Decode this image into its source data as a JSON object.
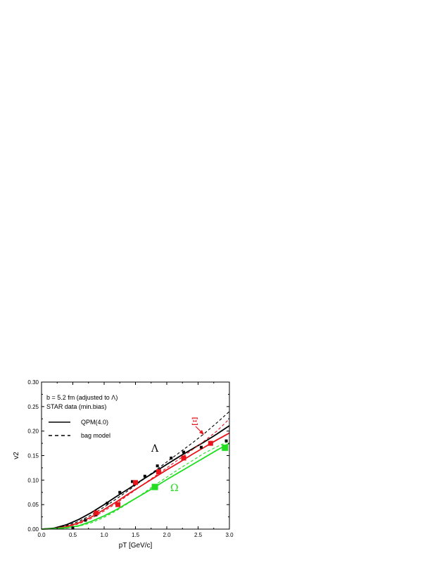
{
  "chart_data": {
    "type": "line",
    "title": "",
    "xlabel": "pT [GeV/c]",
    "ylabel": "v2",
    "xlim": [
      0.0,
      3.0
    ],
    "ylim": [
      0.0,
      0.3
    ],
    "xticks": [
      "0.0",
      "0.5",
      "1.0",
      "1.5",
      "2.0",
      "2.5",
      "3.0"
    ],
    "yticks": [
      "0.00",
      "0.05",
      "0.10",
      "0.15",
      "0.20",
      "0.25",
      "0.30"
    ],
    "grid": false,
    "annotations": {
      "line1": "b = 5.2 fm (adjusted to Λ)",
      "line2": "STAR data (min.bias)"
    },
    "legend": {
      "placement": "top-left",
      "entries": [
        {
          "label": "QPM(4.0)",
          "style": "solid"
        },
        {
          "label": "bag model",
          "style": "dashed"
        }
      ]
    },
    "species_labels": {
      "lambda": "Λ",
      "xi": "Ξ",
      "omega": "Ω"
    },
    "colors": {
      "lambda": "#000000",
      "xi": "#e8141b",
      "omega": "#22dd22"
    },
    "series": [
      {
        "species": "lambda",
        "curve_style": "solid",
        "x": [
          0.0,
          0.2,
          0.4,
          0.6,
          0.8,
          1.0,
          1.2,
          1.4,
          1.6,
          1.8,
          2.0,
          2.2,
          2.4,
          2.6,
          2.8,
          3.0
        ],
        "y": [
          0.0,
          0.002,
          0.009,
          0.02,
          0.034,
          0.05,
          0.067,
          0.083,
          0.1,
          0.116,
          0.132,
          0.148,
          0.163,
          0.178,
          0.194,
          0.211
        ]
      },
      {
        "species": "lambda",
        "curve_style": "dashed",
        "x": [
          0.0,
          0.2,
          0.4,
          0.6,
          0.8,
          1.0,
          1.2,
          1.4,
          1.6,
          1.8,
          2.0,
          2.2,
          2.4,
          2.6,
          2.8,
          3.0
        ],
        "y": [
          0.0,
          0.002,
          0.007,
          0.016,
          0.029,
          0.045,
          0.062,
          0.08,
          0.099,
          0.118,
          0.137,
          0.156,
          0.175,
          0.195,
          0.217,
          0.24
        ]
      },
      {
        "species": "xi",
        "curve_style": "solid",
        "x": [
          0.0,
          0.2,
          0.4,
          0.6,
          0.8,
          1.0,
          1.2,
          1.4,
          1.6,
          1.8,
          2.0,
          2.2,
          2.4,
          2.6,
          2.8,
          3.0
        ],
        "y": [
          0.0,
          0.001,
          0.005,
          0.013,
          0.025,
          0.04,
          0.056,
          0.073,
          0.089,
          0.105,
          0.121,
          0.136,
          0.152,
          0.167,
          0.182,
          0.196
        ]
      },
      {
        "species": "xi",
        "curve_style": "dashed",
        "x": [
          0.0,
          0.2,
          0.4,
          0.6,
          0.8,
          1.0,
          1.2,
          1.4,
          1.6,
          1.8,
          2.0,
          2.2,
          2.4,
          2.6,
          2.8,
          3.0
        ],
        "y": [
          0.0,
          0.001,
          0.004,
          0.011,
          0.022,
          0.037,
          0.053,
          0.071,
          0.089,
          0.107,
          0.125,
          0.143,
          0.161,
          0.18,
          0.2,
          0.225
        ]
      },
      {
        "species": "omega",
        "curve_style": "solid",
        "x": [
          0.0,
          0.2,
          0.4,
          0.6,
          0.8,
          1.0,
          1.2,
          1.4,
          1.6,
          1.8,
          2.0,
          2.2,
          2.4,
          2.6,
          2.8,
          3.0
        ],
        "y": [
          0.0,
          0.001,
          0.003,
          0.007,
          0.016,
          0.027,
          0.04,
          0.055,
          0.07,
          0.085,
          0.101,
          0.116,
          0.131,
          0.146,
          0.161,
          0.175
        ]
      },
      {
        "species": "omega",
        "curve_style": "dashed",
        "x": [
          0.0,
          0.2,
          0.4,
          0.6,
          0.8,
          1.0,
          1.2,
          1.4,
          1.6,
          1.8,
          2.0,
          2.2,
          2.4,
          2.6,
          2.8,
          3.0
        ],
        "y": [
          0.0,
          0.0005,
          0.002,
          0.006,
          0.013,
          0.024,
          0.038,
          0.054,
          0.071,
          0.089,
          0.106,
          0.123,
          0.139,
          0.155,
          0.168,
          0.18
        ]
      }
    ],
    "data_points": [
      {
        "species": "lambda",
        "marker": "square-small",
        "x": [
          0.5,
          0.7,
          0.87,
          1.05,
          1.25,
          1.45,
          1.65,
          1.85,
          2.07,
          2.27,
          2.55,
          2.95
        ],
        "y": [
          0.002,
          0.018,
          0.029,
          0.053,
          0.075,
          0.097,
          0.108,
          0.129,
          0.145,
          0.157,
          0.167,
          0.18
        ]
      },
      {
        "species": "xi",
        "marker": "square-medium",
        "x": [
          0.87,
          1.22,
          1.5,
          1.87,
          2.27,
          2.7
        ],
        "y": [
          0.033,
          0.05,
          0.095,
          0.117,
          0.145,
          0.175
        ]
      },
      {
        "species": "omega",
        "marker": "square-large",
        "x": [
          1.81,
          2.93
        ],
        "y": [
          0.086,
          0.166
        ]
      }
    ]
  }
}
